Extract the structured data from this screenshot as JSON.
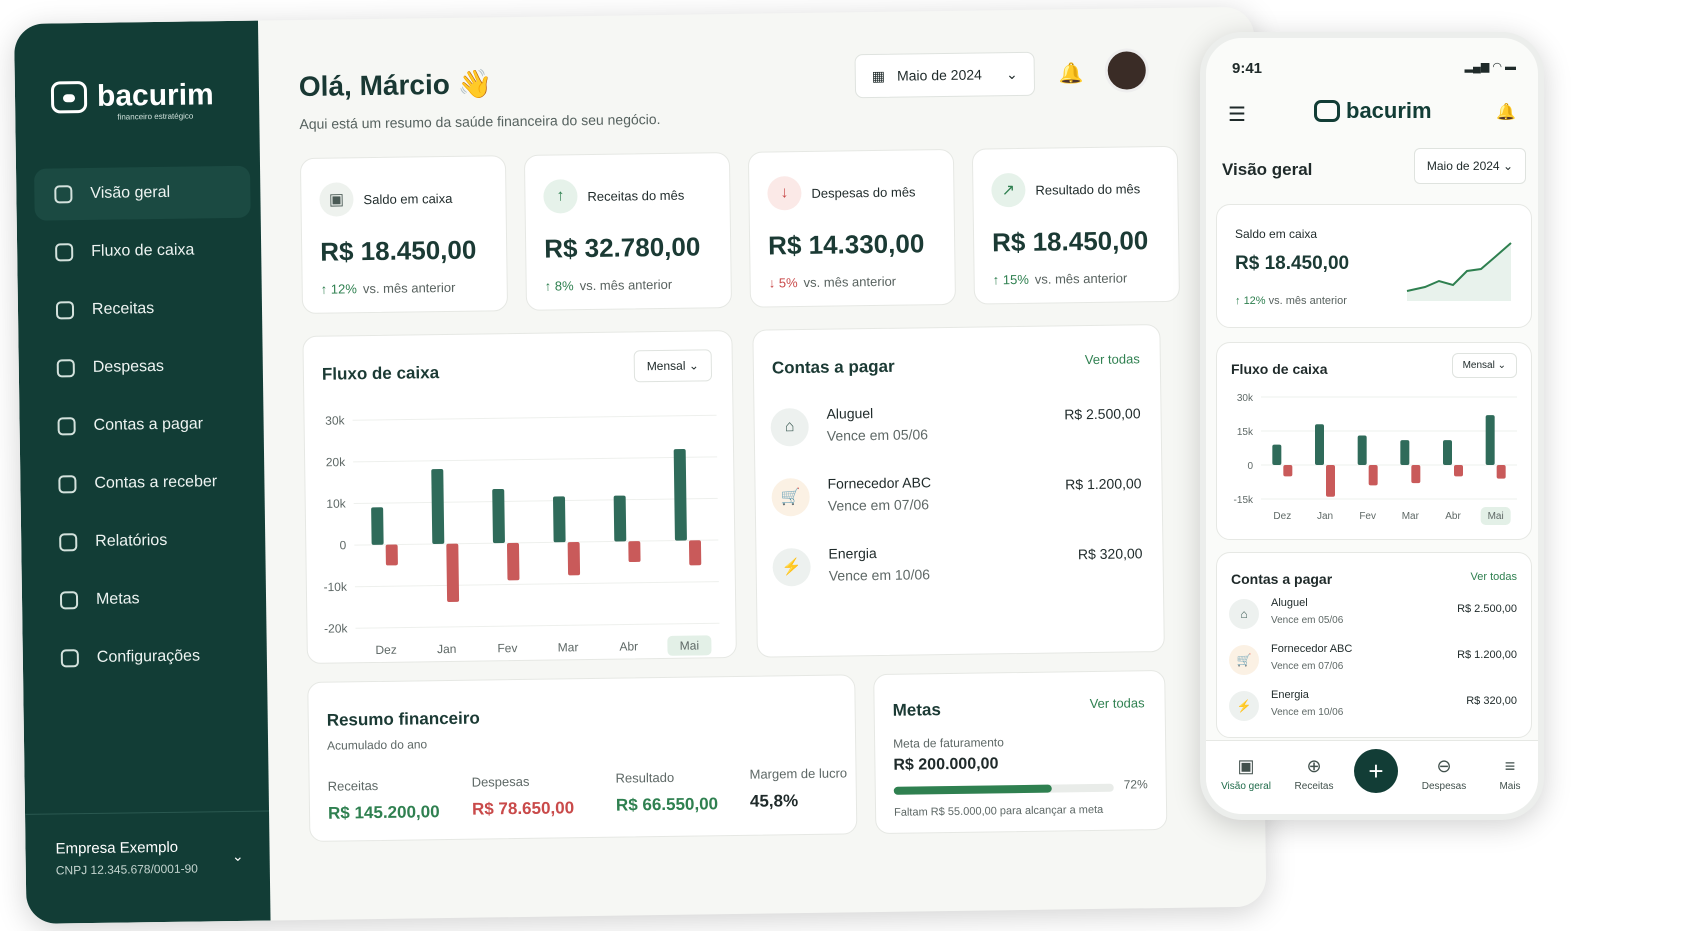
{
  "brand": {
    "name": "bacurim",
    "tagline": "financeiro estratégico"
  },
  "sidebar": {
    "items": [
      {
        "label": "Visão geral",
        "icon": "dashboard-icon",
        "active": true
      },
      {
        "label": "Fluxo de caixa",
        "icon": "cashflow-icon"
      },
      {
        "label": "Receitas",
        "icon": "plus-circle-icon"
      },
      {
        "label": "Despesas",
        "icon": "minus-circle-icon"
      },
      {
        "label": "Contas a pagar",
        "icon": "document-icon"
      },
      {
        "label": "Contas a receber",
        "icon": "document-icon"
      },
      {
        "label": "Relatórios",
        "icon": "report-icon"
      },
      {
        "label": "Metas",
        "icon": "target-icon"
      },
      {
        "label": "Configurações",
        "icon": "gear-icon"
      }
    ],
    "company": {
      "name": "Empresa Exemplo",
      "cnpj": "CNPJ 12.345.678/0001-90"
    }
  },
  "header": {
    "greeting": "Olá, Márcio",
    "wave": "👋",
    "subtitle": "Aqui está um resumo da saúde financeira do seu negócio.",
    "period": "Maio de 2024"
  },
  "kpis": [
    {
      "title": "Saldo em caixa",
      "value": "R$ 18.450,00",
      "delta": "12%",
      "dir": "up",
      "note": "vs. mês anterior",
      "icon": "wallet-icon",
      "glyph": "▣",
      "bg": "#eef2ee",
      "fg": "#4a5a55"
    },
    {
      "title": "Receitas do mês",
      "value": "R$ 32.780,00",
      "delta": "8%",
      "dir": "up",
      "note": "vs. mês anterior",
      "icon": "arrow-up-icon",
      "glyph": "↑",
      "bg": "#e6f2ea",
      "fg": "#2f8050"
    },
    {
      "title": "Despesas do mês",
      "value": "R$ 14.330,00",
      "delta": "5%",
      "dir": "down",
      "note": "vs. mês anterior",
      "icon": "arrow-down-icon",
      "glyph": "↓",
      "bg": "#fbe9e7",
      "fg": "#c94a4a"
    },
    {
      "title": "Resultado do mês",
      "value": "R$ 18.450,00",
      "delta": "15%",
      "dir": "up",
      "note": "vs. mês anterior",
      "icon": "trend-icon",
      "glyph": "↗",
      "bg": "#e6f2ea",
      "fg": "#2f8050"
    }
  ],
  "cashflow": {
    "title": "Fluxo de caixa",
    "period": "Mensal"
  },
  "chart_data": {
    "type": "bar",
    "categories": [
      "Dez",
      "Jan",
      "Fev",
      "Mar",
      "Abr",
      "Mai"
    ],
    "series": [
      {
        "values": [
          9,
          18,
          13,
          11,
          11,
          22
        ],
        "color": "#2f6b5a"
      },
      {
        "values": [
          -5,
          -14,
          -9,
          -8,
          -5,
          -6
        ],
        "color": "#c95a5a"
      }
    ],
    "ylim": [
      -20,
      30
    ],
    "yticks": [
      "30k",
      "20k",
      "10k",
      "0",
      "-10k",
      "-20k"
    ],
    "highlight": "Mai"
  },
  "payables": {
    "title": "Contas a pagar",
    "link": "Ver todas",
    "items": [
      {
        "name": "Aluguel",
        "due": "Vence em 05/06",
        "value": "R$ 2.500,00",
        "icon": "house-icon",
        "glyph": "⌂",
        "bg": "#edf1ef",
        "fg": "#3c5b54"
      },
      {
        "name": "Fornecedor ABC",
        "due": "Vence em 07/06",
        "value": "R$ 1.200,00",
        "icon": "cart-icon",
        "glyph": "🛒",
        "bg": "#fbf1e4",
        "fg": "#c58a2f"
      },
      {
        "name": "Energia",
        "due": "Vence em 10/06",
        "value": "R$ 320,00",
        "icon": "bolt-icon",
        "glyph": "⚡",
        "bg": "#edf1ef",
        "fg": "#3c5b54"
      }
    ]
  },
  "summary": {
    "title": "Resumo financeiro",
    "subtitle": "Acumulado do ano",
    "items": [
      {
        "label": "Receitas",
        "value": "R$ 145.200,00",
        "color": "#2f8050"
      },
      {
        "label": "Despesas",
        "value": "R$ 78.650,00",
        "color": "#c94a4a"
      },
      {
        "label": "Resultado",
        "value": "R$ 66.550,00",
        "color": "#2f8050"
      },
      {
        "label": "Margem de lucro",
        "value": "45,8%",
        "color": "#1f2a2a"
      }
    ]
  },
  "goals": {
    "title": "Metas",
    "link": "Ver todas",
    "label": "Meta de faturamento",
    "value": "R$ 200.000,00",
    "percent": "72%",
    "progress": 0.72,
    "footer": "Faltam R$ 55.000,00 para alcançar a meta"
  },
  "mobile": {
    "time": "9:41",
    "title": "Visão geral",
    "period": "Maio de 2024",
    "balance": {
      "title": "Saldo em caixa",
      "value": "R$ 18.450,00",
      "delta": "12%",
      "note": "vs. mês anterior"
    },
    "cashflow": {
      "title": "Fluxo de caixa",
      "period": "Mensal",
      "yticks": [
        "30k",
        "15k",
        "0",
        "-15k"
      ]
    },
    "payables": {
      "title": "Contas a pagar",
      "link": "Ver todas"
    },
    "tabs": [
      {
        "label": "Visão geral",
        "icon": "dashboard-icon",
        "active": true
      },
      {
        "label": "Receitas",
        "icon": "up-circle-icon"
      },
      {
        "label": "Despesas",
        "icon": "down-circle-icon"
      },
      {
        "label": "Mais",
        "icon": "menu-icon"
      }
    ]
  }
}
